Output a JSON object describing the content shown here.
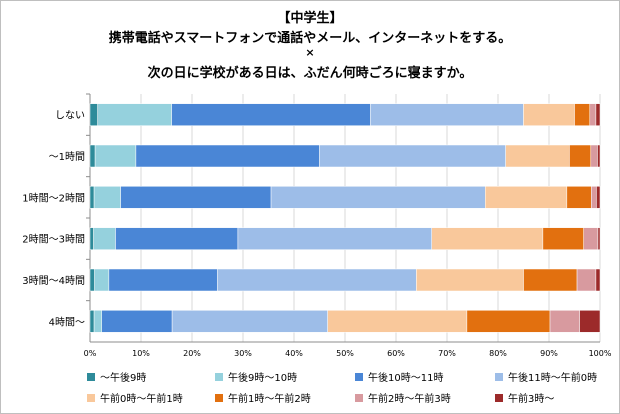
{
  "title": {
    "line1": "【中学生】",
    "line2": "携帯電話やスマートフォンで通話やメール、インターネットをする。",
    "line3": "×",
    "line4": "次の日に学校がある日は、ふだん何時ごろに寝ますか。"
  },
  "chart_data": {
    "type": "bar",
    "orientation": "horizontal-stacked-100",
    "categories": [
      "しない",
      "～1時間",
      "1時間～2時間",
      "2時間～3時間",
      "3時間～4時間",
      "4時間～"
    ],
    "xlim": [
      0,
      100
    ],
    "xticks": [
      "0%",
      "10%",
      "20%",
      "30%",
      "40%",
      "50%",
      "60%",
      "70%",
      "80%",
      "90%",
      "100%"
    ],
    "grid": true,
    "legend_position": "bottom",
    "series": [
      {
        "name": "～午後9時",
        "color": "#2e8b9a",
        "values": [
          1.5,
          1.0,
          0.8,
          0.7,
          0.9,
          0.8
        ]
      },
      {
        "name": "午後9時～10時",
        "color": "#95d1dd",
        "values": [
          14.5,
          8.0,
          5.2,
          4.3,
          2.8,
          1.5
        ]
      },
      {
        "name": "午後10時～11時",
        "color": "#4a86d6",
        "values": [
          39.0,
          36.0,
          29.5,
          24.0,
          21.3,
          13.8
        ]
      },
      {
        "name": "午後11時～午前0時",
        "color": "#9dbde8",
        "values": [
          30.0,
          36.5,
          42.0,
          38.0,
          39.0,
          30.5
        ]
      },
      {
        "name": "午前0時～午前1時",
        "color": "#f9c89b",
        "values": [
          10.0,
          12.5,
          16.0,
          21.8,
          21.0,
          27.3
        ]
      },
      {
        "name": "午前1時～午前2時",
        "color": "#e2700f",
        "values": [
          3.0,
          4.2,
          4.8,
          8.0,
          10.5,
          16.3
        ]
      },
      {
        "name": "午前2時～午前3時",
        "color": "#d89a9f",
        "values": [
          1.2,
          1.3,
          1.0,
          2.8,
          3.7,
          5.8
        ]
      },
      {
        "name": "午前3時～",
        "color": "#9c2a2a",
        "values": [
          0.8,
          0.5,
          0.7,
          0.4,
          0.8,
          4.0
        ]
      }
    ]
  }
}
